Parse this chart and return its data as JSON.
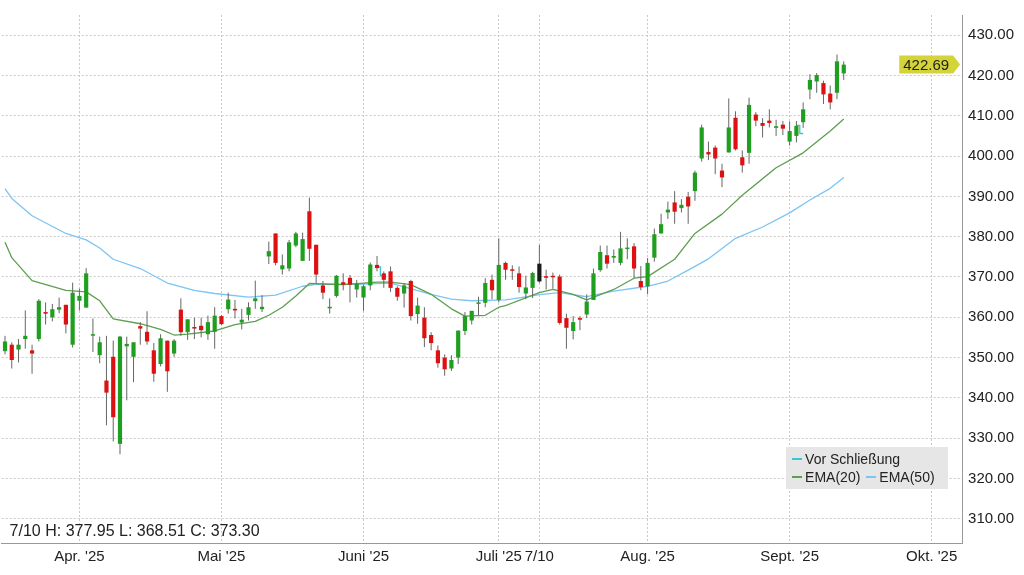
{
  "chart_data": {
    "type": "candlestick",
    "categories": [
      null,
      null,
      null,
      null,
      null,
      null,
      null,
      null,
      null,
      null,
      null,
      "Apr. '25",
      null,
      null,
      null,
      null,
      null,
      null,
      null,
      null,
      null,
      null,
      null,
      null,
      null,
      null,
      null,
      null,
      null,
      null,
      null,
      null,
      "Mai '25",
      null,
      null,
      null,
      null,
      null,
      null,
      null,
      null,
      null,
      null,
      null,
      null,
      null,
      null,
      null,
      null,
      null,
      null,
      null,
      null,
      "Juni '25",
      null,
      null,
      null,
      null,
      null,
      null,
      null,
      null,
      null,
      null,
      null,
      null,
      null,
      null,
      null,
      null,
      null,
      null,
      null,
      "Juli '25",
      null,
      null,
      null,
      null,
      null,
      "7/10",
      null,
      null,
      null,
      null,
      null,
      null,
      null,
      null,
      null,
      null,
      null,
      null,
      null,
      null,
      null,
      "Aug. '25",
      null,
      null,
      null,
      null,
      null,
      null,
      null,
      null,
      null,
      null,
      null,
      null,
      null,
      null,
      null,
      null,
      null,
      null,
      null,
      null,
      "Sept. '25",
      null,
      null,
      null,
      null,
      null,
      null,
      null,
      null,
      null,
      null,
      null,
      null,
      null,
      null,
      null,
      null,
      null,
      null,
      null,
      null,
      "Okt. '25",
      null,
      null,
      null,
      null
    ],
    "ohlc": [
      [
        351.6,
        355.4,
        350.8,
        354.0
      ],
      [
        353.2,
        353.8,
        347.3,
        349.4
      ],
      [
        352.0,
        354.6,
        348.8,
        353.2
      ],
      [
        354.6,
        361.7,
        352.2,
        355.4
      ],
      [
        351.8,
        353.2,
        346.0,
        351.0
      ],
      [
        354.6,
        364.5,
        354.0,
        364.1
      ],
      [
        361.3,
        363.7,
        358.2,
        360.9
      ],
      [
        360.0,
        363.3,
        359.0,
        362.0
      ],
      [
        361.9,
        364.9,
        361.0,
        362.5
      ],
      [
        363.1,
        363.1,
        356.0,
        358.2
      ],
      [
        353.2,
        368.6,
        352.5,
        366.1
      ],
      [
        364.1,
        367.1,
        361.7,
        365.3
      ],
      [
        362.4,
        372.2,
        362.4,
        370.9
      ],
      [
        355.6,
        359.7,
        351.4,
        355.8
      ],
      [
        350.6,
        355.2,
        348.6,
        353.8
      ],
      [
        344.3,
        355.4,
        333.2,
        341.3
      ],
      [
        350.2,
        354.2,
        329.2,
        335.2
      ],
      [
        328.6,
        355.4,
        326.0,
        355.2
      ],
      [
        352.8,
        355.2,
        339.4,
        353.4
      ],
      [
        350.2,
        353.8,
        343.9,
        353.8
      ],
      [
        357.8,
        358.8,
        353.2,
        357.2
      ],
      [
        356.4,
        361.5,
        353.2,
        354.0
      ],
      [
        351.8,
        353.6,
        344.0,
        346.0
      ],
      [
        348.4,
        355.8,
        347.8,
        354.8
      ],
      [
        354.2,
        354.2,
        341.5,
        346.6
      ],
      [
        351.0,
        354.6,
        350.2,
        354.2
      ],
      [
        361.9,
        364.7,
        355.4,
        356.3
      ],
      [
        356.3,
        359.5,
        354.4,
        359.5
      ],
      [
        357.6,
        359.9,
        354.6,
        357.2
      ],
      [
        357.9,
        359.9,
        355.0,
        356.8
      ],
      [
        355.8,
        360.4,
        354.4,
        358.8
      ],
      [
        356.4,
        362.5,
        352.2,
        360.4
      ],
      [
        360.3,
        360.6,
        358.0,
        358.3
      ],
      [
        362.0,
        366.1,
        360.9,
        364.4
      ],
      [
        362.1,
        364.3,
        359.7,
        361.7
      ],
      [
        358.7,
        362.1,
        357.0,
        359.4
      ],
      [
        360.6,
        363.7,
        359.2,
        362.5
      ],
      [
        364.0,
        369.1,
        362.1,
        364.7
      ],
      [
        362.0,
        365.5,
        361.3,
        362.6
      ],
      [
        375.1,
        378.8,
        373.2,
        376.4
      ],
      [
        380.8,
        380.8,
        372.9,
        373.5
      ],
      [
        371.9,
        375.6,
        370.6,
        372.9
      ],
      [
        372.1,
        379.2,
        371.4,
        378.6
      ],
      [
        377.8,
        381.2,
        377.4,
        380.8
      ],
      [
        374.0,
        381.0,
        374.0,
        379.4
      ],
      [
        386.3,
        389.7,
        374.0,
        377.0
      ],
      [
        378.0,
        378.0,
        368.5,
        370.6
      ],
      [
        367.9,
        369.0,
        364.5,
        366.1
      ],
      [
        362.4,
        364.7,
        360.9,
        362.6
      ],
      [
        365.3,
        370.5,
        364.9,
        370.3
      ],
      [
        368.7,
        370.9,
        366.7,
        368.1
      ],
      [
        369.8,
        370.5,
        363.7,
        368.1
      ],
      [
        366.9,
        369.3,
        364.9,
        368.3
      ],
      [
        364.9,
        368.1,
        361.6,
        367.7
      ],
      [
        367.9,
        373.6,
        366.7,
        373.1
      ],
      [
        373.0,
        375.2,
        371.4,
        372.2
      ],
      [
        370.9,
        371.4,
        367.3,
        369.3
      ],
      [
        371.4,
        372.6,
        366.3,
        367.3
      ],
      [
        367.3,
        367.7,
        364.1,
        365.1
      ],
      [
        365.9,
        368.5,
        362.4,
        367.9
      ],
      [
        369.0,
        369.3,
        359.2,
        360.3
      ],
      [
        360.8,
        364.9,
        358.4,
        362.9
      ],
      [
        359.9,
        362.5,
        352.6,
        354.8
      ],
      [
        355.6,
        356.3,
        351.8,
        353.6
      ],
      [
        351.8,
        353.0,
        347.5,
        348.6
      ],
      [
        350.0,
        350.8,
        345.5,
        347.1
      ],
      [
        347.3,
        350.6,
        346.7,
        349.4
      ],
      [
        350.0,
        356.7,
        348.4,
        356.7
      ],
      [
        356.6,
        361.3,
        355.6,
        360.3
      ],
      [
        359.2,
        361.6,
        358.2,
        361.6
      ],
      [
        363.5,
        365.1,
        360.5,
        363.7
      ],
      [
        363.6,
        369.7,
        362.5,
        368.5
      ],
      [
        369.3,
        370.6,
        364.5,
        366.7
      ],
      [
        364.3,
        379.6,
        363.7,
        373.0
      ],
      [
        373.5,
        373.8,
        369.3,
        371.8
      ],
      [
        371.9,
        372.9,
        369.3,
        371.6
      ],
      [
        370.9,
        372.6,
        366.1,
        367.5
      ],
      [
        365.9,
        370.3,
        364.5,
        367.4
      ],
      [
        367.3,
        371.3,
        364.8,
        371.0
      ],
      [
        368.9,
        377.95,
        368.51,
        373.3
      ],
      [
        370.2,
        371.8,
        366.9,
        369.8
      ],
      [
        370.3,
        371.1,
        367.1,
        370.0
      ],
      [
        370.1,
        370.6,
        358.2,
        358.6
      ],
      [
        359.8,
        360.9,
        352.2,
        357.4
      ],
      [
        356.6,
        360.3,
        354.5,
        358.8
      ],
      [
        359.8,
        360.3,
        356.8,
        359.4
      ],
      [
        360.7,
        365.7,
        359.8,
        363.9
      ],
      [
        364.3,
        372.1,
        364.3,
        370.9
      ],
      [
        371.7,
        377.8,
        371.3,
        376.2
      ],
      [
        375.4,
        377.8,
        372.1,
        373.3
      ],
      [
        374.8,
        376.8,
        373.5,
        375.2
      ],
      [
        373.5,
        381.2,
        372.9,
        377.1
      ],
      [
        377.1,
        379.6,
        374.4,
        377.3
      ],
      [
        377.6,
        378.4,
        369.7,
        372.1
      ],
      [
        369.0,
        372.7,
        366.7,
        367.5
      ],
      [
        367.7,
        374.7,
        365.7,
        373.5
      ],
      [
        374.8,
        382.0,
        373.8,
        380.6
      ],
      [
        380.8,
        385.7,
        380.8,
        383.1
      ],
      [
        386.0,
        388.7,
        384.4,
        386.7
      ],
      [
        388.5,
        391.3,
        383.2,
        386.2
      ],
      [
        387.1,
        389.3,
        386.0,
        387.9
      ],
      [
        389.9,
        391.1,
        383.2,
        387.5
      ],
      [
        391.3,
        396.4,
        388.9,
        395.9
      ],
      [
        399.4,
        407.8,
        398.6,
        407.1
      ],
      [
        401.0,
        403.6,
        399.0,
        400.4
      ],
      [
        402.1,
        402.6,
        395.5,
        399.4
      ],
      [
        396.4,
        398.1,
        392.3,
        394.7
      ],
      [
        400.9,
        414.3,
        400.9,
        407.1
      ],
      [
        409.5,
        411.1,
        401.4,
        401.7
      ],
      [
        399.7,
        401.4,
        395.9,
        397.7
      ],
      [
        400.8,
        414.5,
        398.1,
        412.7
      ],
      [
        410.3,
        410.9,
        407.4,
        408.8
      ],
      [
        408.2,
        409.4,
        404.6,
        407.5
      ],
      [
        408.8,
        411.6,
        407.1,
        408.2
      ],
      [
        407.0,
        409.0,
        405.0,
        407.4
      ],
      [
        407.8,
        408.7,
        405.2,
        406.8
      ],
      [
        403.6,
        408.6,
        402.6,
        406.2
      ],
      [
        405.0,
        408.7,
        403.4,
        407.5
      ],
      [
        408.4,
        413.3,
        407.0,
        411.6
      ],
      [
        416.5,
        420.3,
        414.1,
        418.9
      ],
      [
        418.5,
        420.6,
        415.7,
        420.1
      ],
      [
        418.1,
        418.7,
        412.9,
        415.3
      ],
      [
        415.5,
        417.5,
        411.6,
        413.3
      ],
      [
        415.7,
        425.2,
        414.1,
        423.5
      ],
      [
        420.5,
        423.5,
        418.9,
        422.69
      ],
      null,
      null,
      null,
      null,
      null,
      null,
      null,
      null,
      null,
      null,
      null,
      null,
      null,
      null,
      null,
      null,
      null
    ],
    "colors": [
      "#1f9e1f",
      "#dd1111",
      "#1f9e1f",
      "#1f9e1f",
      "#dd1111",
      "#1f9e1f",
      "#dd1111",
      "#1f9e1f",
      "#1f9e1f",
      "#dd1111",
      "#1f9e1f",
      "#1f9e1f",
      "#1f9e1f",
      "#1f9e1f",
      "#1f9e1f",
      "#dd1111",
      "#dd1111",
      "#1f9e1f",
      "#1f9e1f",
      "#1f9e1f",
      "#dd1111",
      "#dd1111",
      "#dd1111",
      "#1f9e1f",
      "#dd1111",
      "#1f9e1f",
      "#dd1111",
      "#1f9e1f",
      "#dd1111",
      "#dd1111",
      "#1f9e1f",
      "#1f9e1f",
      "#dd1111",
      "#1f9e1f",
      "#dd1111",
      "#1f9e1f",
      "#1f9e1f",
      "#1f9e1f",
      "#1f9e1f",
      "#1f9e1f",
      "#dd1111",
      "#1f9e1f",
      "#1f9e1f",
      "#1f9e1f",
      "#1f9e1f",
      "#dd1111",
      "#dd1111",
      "#dd1111",
      "#1f9e1f",
      "#1f9e1f",
      "#dd1111",
      "#dd1111",
      "#1f9e1f",
      "#1f9e1f",
      "#1f9e1f",
      "#dd1111",
      "#dd1111",
      "#dd1111",
      "#dd1111",
      "#1f9e1f",
      "#dd1111",
      "#1f9e1f",
      "#dd1111",
      "#dd1111",
      "#dd1111",
      "#dd1111",
      "#1f9e1f",
      "#1f9e1f",
      "#1f9e1f",
      "#1f9e1f",
      "#1f9e1f",
      "#1f9e1f",
      "#dd1111",
      "#1f9e1f",
      "#dd1111",
      "#dd1111",
      "#dd1111",
      "#1f9e1f",
      "#1f9e1f",
      "#1a1a1a",
      "#dd1111",
      "#dd1111",
      "#dd1111",
      "#dd1111",
      "#1f9e1f",
      "#dd1111",
      "#1f9e1f",
      "#1f9e1f",
      "#1f9e1f",
      "#dd1111",
      "#1f9e1f",
      "#1f9e1f",
      "#1f9e1f",
      "#dd1111",
      "#dd1111",
      "#1f9e1f",
      "#1f9e1f",
      "#1f9e1f",
      "#1f9e1f",
      "#dd1111",
      "#1f9e1f",
      "#dd1111",
      "#1f9e1f",
      "#1f9e1f",
      "#dd1111",
      "#dd1111",
      "#dd1111",
      "#1f9e1f",
      "#dd1111",
      "#dd1111",
      "#1f9e1f",
      "#dd1111",
      "#dd1111",
      "#dd1111",
      "#1f9e1f",
      "#dd1111",
      "#1f9e1f",
      "#1f9e1f",
      "#1f9e1f",
      "#1f9e1f",
      "#1f9e1f",
      "#dd1111",
      "#dd1111",
      "#1f9e1f",
      "#1f9e1f",
      null,
      null,
      null,
      null,
      null,
      null,
      null,
      null,
      null,
      null,
      null,
      null,
      null,
      null,
      null,
      null,
      null
    ],
    "series": [
      {
        "name": "Vor Schließung",
        "type": "step",
        "color": "#33c8d8",
        "values": [
          null,
          null,
          null,
          null,
          null,
          null,
          null,
          null,
          null,
          null,
          null,
          null,
          null,
          null,
          null,
          null,
          null,
          null,
          null,
          null,
          null,
          null,
          null,
          null,
          null,
          null,
          null,
          null,
          null,
          null,
          null,
          null,
          null,
          null,
          null,
          null,
          null,
          null,
          null,
          null,
          null,
          null,
          null,
          null,
          null,
          null,
          null,
          null,
          null,
          null,
          null,
          null,
          null,
          null,
          null,
          372.5,
          370.3,
          null,
          null,
          null,
          null,
          null,
          null,
          null,
          null,
          null,
          null,
          null,
          null,
          null,
          null,
          null,
          null,
          null,
          null,
          null,
          null,
          null,
          null,
          null,
          null,
          null,
          null,
          null,
          null,
          null,
          null,
          null,
          null,
          null,
          null,
          null,
          null,
          null,
          null,
          null,
          null,
          null,
          null,
          null,
          null,
          null,
          null,
          null,
          null,
          null,
          null,
          null,
          null,
          null,
          null,
          null,
          null,
          null,
          null,
          null,
          null,
          407.6,
          405.6,
          null,
          null,
          null,
          null,
          null,
          null,
          null,
          null,
          null,
          null,
          null,
          null,
          null,
          null,
          null,
          null,
          null,
          null,
          null,
          null,
          null,
          null,
          null
        ]
      },
      {
        "name": "EMA(20)",
        "type": "line",
        "color": "#5e9e50",
        "values": [
          378.6,
          374.8,
          null,
          null,
          369.1,
          null,
          null,
          null,
          null,
          366.7,
          null,
          null,
          366.3,
          null,
          364.1,
          null,
          359.6,
          null,
          null,
          null,
          358.4,
          null,
          null,
          357.0,
          null,
          355.6,
          null,
          355.8,
          null,
          null,
          null,
          356.6,
          null,
          null,
          358.2,
          null,
          null,
          359.0,
          null,
          360.5,
          null,
          362.5,
          null,
          365.3,
          null,
          368.4,
          null,
          null,
          368.2,
          null,
          368.1,
          null,
          null,
          null,
          null,
          368.7,
          null,
          368.7,
          null,
          null,
          368.1,
          null,
          null,
          365.7,
          null,
          null,
          362.1,
          null,
          360.3,
          null,
          null,
          360.5,
          null,
          362.5,
          362.9,
          null,
          null,
          null,
          null,
          366.1,
          null,
          366.9,
          null,
          null,
          365.7,
          null,
          364.3,
          null,
          null,
          null,
          366.9,
          null,
          null,
          369.7,
          null,
          370.1,
          null,
          null,
          null,
          374.4,
          null,
          null,
          380.8,
          null,
          null,
          null,
          385.6,
          null,
          null,
          390.3,
          null,
          null,
          null,
          null,
          397.1,
          null,
          null,
          null,
          400.8,
          null,
          null,
          null,
          406.2,
          null,
          409.2,
          null,
          null,
          null,
          null,
          null,
          null,
          null,
          null,
          null,
          null,
          null,
          null,
          null,
          null,
          null,
          null,
          null
        ]
      },
      {
        "name": "EMA(50)",
        "type": "line",
        "color": "#7cc4f4",
        "values": [
          391.9,
          389.5,
          null,
          null,
          385.2,
          null,
          null,
          null,
          null,
          380.8,
          null,
          null,
          379.2,
          null,
          377.2,
          null,
          374.4,
          null,
          null,
          null,
          372.1,
          null,
          null,
          null,
          368.5,
          null,
          null,
          null,
          366.7,
          null,
          null,
          365.9,
          null,
          null,
          null,
          null,
          365.0,
          null,
          null,
          null,
          365.5,
          null,
          null,
          null,
          367.7,
          null,
          368.2,
          null,
          null,
          null,
          null,
          null,
          368.2,
          null,
          null,
          null,
          null,
          368.5,
          null,
          null,
          null,
          null,
          null,
          365.7,
          null,
          null,
          364.5,
          null,
          null,
          364.1,
          null,
          null,
          null,
          null,
          364.3,
          null,
          null,
          null,
          null,
          365.6,
          null,
          null,
          366.1,
          null,
          null,
          null,
          365.1,
          null,
          null,
          null,
          366.5,
          null,
          null,
          null,
          null,
          367.7,
          null,
          null,
          369.0,
          null,
          null,
          371.7,
          null,
          null,
          374.5,
          null,
          null,
          null,
          379.6,
          null,
          null,
          null,
          382.4,
          null,
          null,
          null,
          385.9,
          null,
          null,
          389.1,
          null,
          null,
          392.0,
          null,
          394.7,
          null,
          null,
          null,
          null,
          null,
          null,
          null,
          null,
          null,
          null,
          null,
          null,
          null,
          null,
          null,
          null,
          null
        ]
      }
    ],
    "ylim": [
      304,
      435
    ],
    "yticks": [
      {
        "value": 310,
        "label": "310.00"
      },
      {
        "value": 320,
        "label": "320.00"
      },
      {
        "value": 330,
        "label": "330.00"
      },
      {
        "value": 340,
        "label": "340.00"
      },
      {
        "value": 350,
        "label": "350.00"
      },
      {
        "value": 360,
        "label": "360.00"
      },
      {
        "value": 370,
        "label": "370.00"
      },
      {
        "value": 380,
        "label": "380.00"
      },
      {
        "value": 390,
        "label": "390.00"
      },
      {
        "value": 400,
        "label": "400.00"
      },
      {
        "value": 410,
        "label": "410.00"
      },
      {
        "value": 420,
        "label": "420.00"
      },
      {
        "value": 430,
        "label": "430.00"
      }
    ],
    "annotations": [
      "7/10 H: 377.95 L: 368.51 C: 373.30",
      "422.69"
    ],
    "grid": true,
    "legend": "bottom right",
    "marker": "none"
  }
}
